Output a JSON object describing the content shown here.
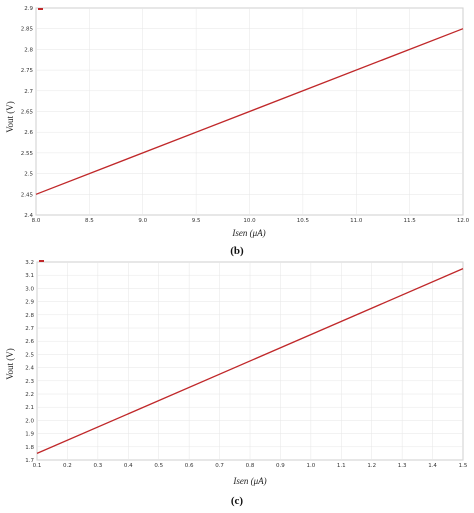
{
  "chart_data": [
    {
      "type": "line",
      "caption": "(b)",
      "xlabel": "Isen (μA)",
      "ylabel": "Vout (V)",
      "xlim": [
        8.0,
        12.0
      ],
      "ylim": [
        2.4,
        2.9
      ],
      "xticks": [
        "8.0",
        "8.5",
        "9.0",
        "9.5",
        "10.0",
        "10.5",
        "11.0",
        "11.5",
        "12.0"
      ],
      "yticks": [
        "2.4",
        "2.45",
        "2.5",
        "2.55",
        "2.6",
        "2.65",
        "2.7",
        "2.75",
        "2.8",
        "2.85",
        "2.9"
      ],
      "grid": true,
      "legend": "top-left",
      "series": [
        {
          "color": "#c0282a",
          "x": [
            8.0,
            12.0
          ],
          "y": [
            2.45,
            2.85
          ]
        }
      ]
    },
    {
      "type": "line",
      "caption": "(c)",
      "xlabel": "Isen (μA)",
      "ylabel": "Vout (V)",
      "xlim": [
        0.1,
        1.5
      ],
      "ylim": [
        1.7,
        3.2
      ],
      "xticks": [
        "0.1",
        "0.2",
        "0.3",
        "0.4",
        "0.5",
        "0.6",
        "0.7",
        "0.8",
        "0.9",
        "1.0",
        "1.1",
        "1.2",
        "1.3",
        "1.4",
        "1.5"
      ],
      "yticks": [
        "1.7",
        "1.8",
        "1.9",
        "2.0",
        "2.1",
        "2.2",
        "2.3",
        "2.4",
        "2.5",
        "2.6",
        "2.7",
        "2.8",
        "2.9",
        "3.0",
        "3.1",
        "3.2"
      ],
      "grid": true,
      "legend": "top-left",
      "series": [
        {
          "color": "#c0282a",
          "x": [
            0.1,
            1.5
          ],
          "y": [
            1.75,
            3.15
          ]
        }
      ]
    }
  ]
}
